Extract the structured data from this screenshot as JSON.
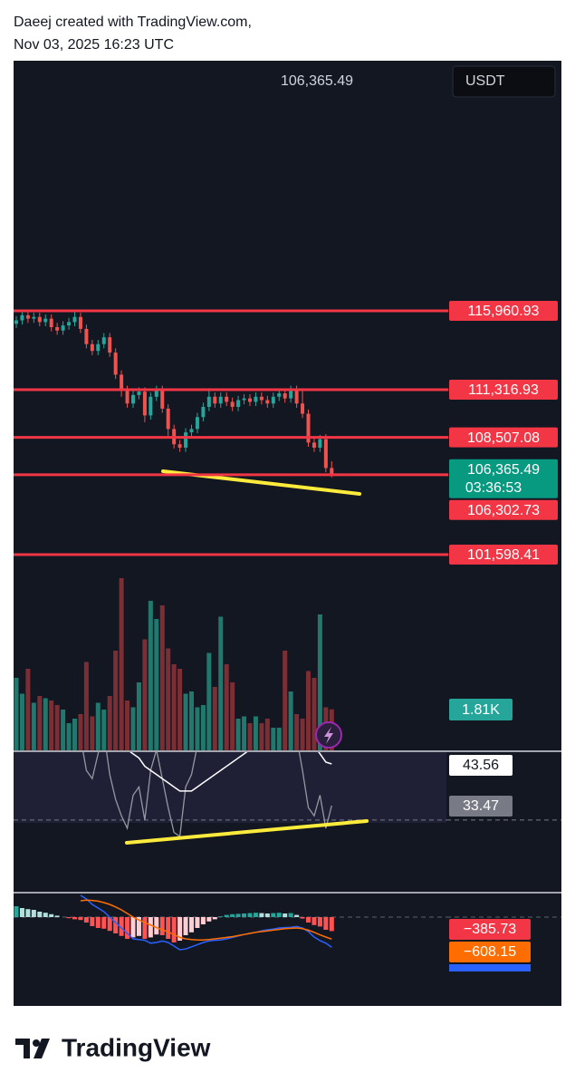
{
  "header": {
    "line1": "Daeej created with TradingView.com,",
    "line2": "Nov 03, 2025 16:23 UTC"
  },
  "currency": "USDT",
  "last_price": {
    "value": 106365.49,
    "label": "106,365.49"
  },
  "countdown": "03:36:53",
  "levels": [
    {
      "value": 115960.93,
      "label": "115,960.93"
    },
    {
      "value": 111316.93,
      "label": "111,316.93"
    },
    {
      "value": 108507.08,
      "label": "108,507.08"
    },
    {
      "value": 106302.73,
      "label": "106,302.73"
    },
    {
      "value": 101598.41,
      "label": "101,598.41"
    }
  ],
  "candles": {
    "open": [
      115200,
      115400,
      115700,
      115500,
      115600,
      115300,
      115500,
      115000,
      114800,
      115100,
      115300,
      115600,
      114900,
      114000,
      113600,
      114000,
      114400,
      113500,
      112200,
      111300,
      110500,
      111000,
      111200,
      109800,
      110900,
      111300,
      110200,
      109000,
      108100,
      107900,
      108800,
      109000,
      109700,
      110300,
      110900,
      110500,
      110900,
      110600,
      110300,
      110700,
      110800,
      110600,
      110900,
      110700,
      110500,
      110900,
      111100,
      110800,
      111300,
      110500,
      109900,
      108200,
      107900,
      108400,
      106700
    ],
    "high": [
      115650,
      115950,
      115950,
      115850,
      115850,
      115750,
      115750,
      115250,
      115350,
      115550,
      116000,
      115850,
      115150,
      114250,
      114250,
      114650,
      114650,
      113750,
      112450,
      111550,
      111250,
      111450,
      111450,
      111150,
      111550,
      111550,
      110450,
      109250,
      108350,
      109050,
      109250,
      109950,
      110550,
      111400,
      111150,
      111150,
      111150,
      110850,
      110950,
      111050,
      111050,
      111150,
      111150,
      110950,
      111150,
      111350,
      111350,
      111550,
      111550,
      111300,
      110150,
      108450,
      108650,
      108700,
      107100
    ],
    "low": [
      114950,
      115150,
      115250,
      115250,
      115050,
      115050,
      114750,
      114550,
      114550,
      114850,
      115050,
      114650,
      113750,
      113350,
      113350,
      113750,
      113250,
      111950,
      110900,
      110250,
      110250,
      110750,
      109400,
      109550,
      110650,
      109950,
      108600,
      107850,
      107650,
      107650,
      108550,
      108750,
      109450,
      110050,
      110250,
      110250,
      110350,
      110050,
      110050,
      110450,
      110350,
      110350,
      110450,
      110250,
      110250,
      110650,
      110550,
      110550,
      110250,
      109650,
      107950,
      107650,
      107650,
      106450,
      106150
    ],
    "close": [
      115400,
      115700,
      115500,
      115600,
      115300,
      115500,
      115000,
      114800,
      115100,
      115300,
      115600,
      114900,
      114000,
      113600,
      114000,
      114400,
      113500,
      112200,
      111300,
      110500,
      111000,
      111200,
      109800,
      110900,
      111300,
      110200,
      109000,
      108100,
      107900,
      108800,
      109000,
      109700,
      110300,
      110900,
      110500,
      110900,
      110600,
      110300,
      110700,
      110800,
      110600,
      110900,
      110700,
      110500,
      110900,
      111100,
      110800,
      111300,
      110500,
      109900,
      108200,
      107900,
      108400,
      106700,
      106365.49
    ]
  },
  "volume": {
    "values": [
      3.2,
      2.5,
      3.6,
      2.1,
      2.4,
      2.3,
      2.2,
      2.0,
      1.8,
      1.2,
      1.4,
      1.6,
      3.9,
      1.5,
      2.1,
      1.8,
      2.4,
      4.4,
      7.6,
      2.2,
      1.9,
      3.0,
      4.9,
      6.6,
      5.8,
      6.4,
      4.5,
      3.8,
      3.6,
      2.5,
      2.6,
      1.9,
      2.0,
      4.3,
      2.8,
      5.9,
      3.8,
      3.0,
      1.4,
      1.5,
      1.2,
      1.5,
      1.2,
      1.4,
      1.0,
      1.0,
      4.4,
      2.6,
      1.6,
      1.4,
      3.5,
      3.2,
      6.0,
      1.9,
      1.81
    ],
    "last_label": "1.81K"
  },
  "rsi": {
    "values": [
      62,
      66,
      60,
      63,
      57,
      60,
      52,
      49,
      54,
      57,
      62,
      50,
      42,
      40,
      46,
      51,
      41,
      35,
      31,
      28,
      36,
      38,
      30,
      42,
      47,
      40,
      33,
      27,
      26,
      38,
      41,
      48,
      53,
      59,
      55,
      59,
      55,
      52,
      57,
      58,
      55,
      59,
      56,
      53,
      58,
      61,
      57,
      63,
      50,
      42,
      33,
      31,
      36,
      28,
      33.47
    ],
    "ma": [
      60,
      61,
      61,
      61,
      61,
      61,
      60,
      59,
      58,
      58,
      58,
      57,
      56,
      55,
      54,
      53,
      52,
      51,
      49,
      47,
      46,
      45,
      43,
      42,
      41,
      40,
      39,
      38,
      37,
      37,
      37,
      38,
      39,
      40,
      41,
      42,
      43,
      44,
      45,
      46,
      47,
      48,
      49,
      50,
      51,
      52,
      53,
      53,
      53,
      52,
      50,
      48,
      46,
      44,
      43.56
    ],
    "value_label": "33.47",
    "ma_label": "43.56",
    "lower_band": 30
  },
  "macd": {
    "histogram": [
      300,
      250,
      220,
      200,
      150,
      120,
      80,
      40,
      0,
      -30,
      -60,
      -80,
      -150,
      -250,
      -300,
      -320,
      -380,
      -450,
      -520,
      -600,
      -560,
      -520,
      -600,
      -560,
      -480,
      -500,
      -600,
      -700,
      -650,
      -500,
      -420,
      -300,
      -200,
      -120,
      -60,
      20,
      60,
      80,
      90,
      100,
      110,
      120,
      110,
      100,
      110,
      120,
      100,
      110,
      60,
      -40,
      -150,
      -220,
      -260,
      -350,
      -385.73
    ],
    "macd": [
      null,
      null,
      null,
      null,
      null,
      null,
      null,
      null,
      null,
      null,
      null,
      600,
      500,
      350,
      250,
      150,
      0,
      -150,
      -300,
      -450,
      -600,
      -620,
      -640,
      -720,
      -700,
      -660,
      -700,
      -800,
      -900,
      -880,
      -820,
      -760,
      -700,
      -660,
      -640,
      -630,
      -600,
      -560,
      -520,
      -480,
      -450,
      -420,
      -380,
      -350,
      -330,
      -300,
      -290,
      -280,
      -260,
      -300,
      -400,
      -550,
      -650,
      -720,
      -830
    ],
    "signal": [
      null,
      null,
      null,
      null,
      null,
      null,
      null,
      null,
      null,
      null,
      null,
      450,
      470,
      460,
      440,
      400,
      350,
      280,
      200,
      100,
      0,
      -80,
      -150,
      -220,
      -290,
      -350,
      -410,
      -480,
      -560,
      -600,
      -620,
      -630,
      -630,
      -620,
      -600,
      -580,
      -560,
      -540,
      -510,
      -480,
      -450,
      -420,
      -400,
      -380,
      -360,
      -340,
      -320,
      -310,
      -300,
      -320,
      -360,
      -420,
      -490,
      -550,
      -608.15
    ],
    "histogram_label": "−385.73",
    "signal_label": "−608.15"
  },
  "footer": {
    "brand": "TradingView"
  }
}
